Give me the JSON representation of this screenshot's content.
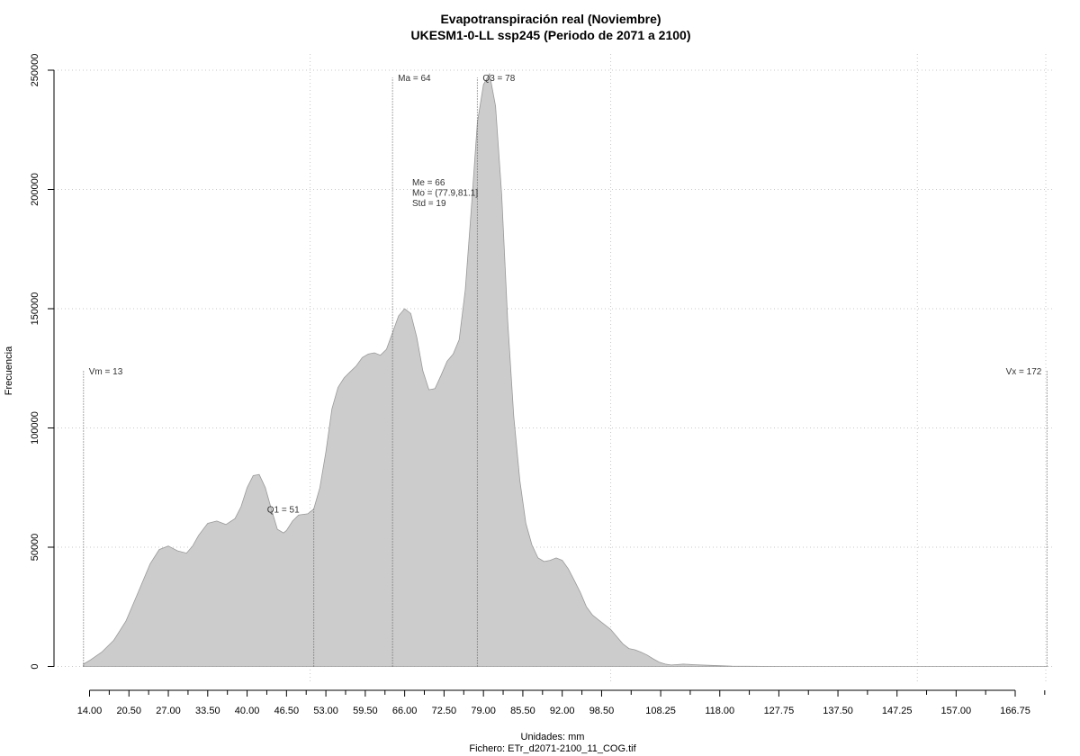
{
  "chart_data": {
    "type": "area",
    "title": "Evapotranspiración real (Noviembre)",
    "subtitle": "UKESM1-0-LL ssp245 (Periodo de 2071 a 2100)",
    "xlabel": "Unidades: mm",
    "caption": "Fichero: ETr_d2071-2100_11_COG.tif",
    "ylabel": "Frecuencia",
    "xlim": [
      12,
      175
    ],
    "ylim": [
      0,
      250000
    ],
    "y_ticks": [
      "0",
      "50000",
      "100000",
      "150000",
      "200000",
      "250000"
    ],
    "y_tick_values": [
      0,
      50000,
      100000,
      150000,
      200000,
      250000
    ],
    "x_ticks_major": [
      "14.00",
      "20.50",
      "27.00",
      "33.50",
      "40.00",
      "46.50",
      "53.00",
      "59.50",
      "66.00",
      "72.50",
      "79.00",
      "85.50",
      "92.00",
      "98.50",
      "108.25",
      "118.00",
      "127.75",
      "137.50",
      "147.25",
      "157.00",
      "166.75"
    ],
    "x_ticks_major_values": [
      14,
      20.5,
      27,
      33.5,
      40,
      46.5,
      53,
      59.5,
      66,
      72.5,
      79,
      85.5,
      92,
      98.5,
      108.25,
      118,
      127.75,
      137.5,
      147.25,
      157,
      166.75
    ],
    "x_ticks_minor": [
      17.25,
      23.75,
      30.25,
      36.75,
      43.25,
      49.75,
      56.25,
      62.75,
      69.25,
      75.75,
      82.25,
      88.75,
      95.25,
      103.375,
      113.125,
      122.875,
      132.625,
      142.375,
      152.125,
      161.875,
      171.625
    ],
    "grid": true,
    "vertical_grid_values": [
      50.4,
      100,
      150.6,
      171.8
    ],
    "x": [
      13,
      14,
      16,
      18,
      20,
      22,
      24,
      25.5,
      27,
      28.5,
      30,
      31,
      32,
      33.5,
      35,
      36.5,
      38,
      39,
      40,
      41,
      42,
      43,
      44,
      45,
      46,
      46.5,
      47.5,
      48.5,
      50,
      51,
      52,
      53,
      54,
      55,
      56,
      57,
      58,
      59,
      60,
      61,
      62,
      63,
      64,
      65,
      66,
      67,
      68,
      69,
      70,
      71,
      72,
      73,
      74,
      75,
      76,
      77,
      78,
      79,
      80,
      81,
      82,
      83,
      84,
      85,
      86,
      87,
      88,
      89,
      90,
      91,
      92,
      93,
      94,
      95,
      96,
      97,
      98,
      99,
      100,
      101,
      102,
      103,
      104,
      105,
      106,
      107,
      108,
      109,
      110,
      112,
      114,
      116,
      118,
      120,
      125,
      130,
      140,
      150,
      160,
      170,
      172
    ],
    "y": [
      1000,
      2500,
      6000,
      11000,
      19000,
      31000,
      43000,
      49000,
      50500,
      48500,
      47500,
      50500,
      55000,
      60000,
      61000,
      59500,
      62000,
      67000,
      75000,
      80000,
      80500,
      75000,
      66000,
      57500,
      56000,
      57000,
      61000,
      63500,
      64000,
      66000,
      75000,
      90000,
      108000,
      117000,
      121000,
      123500,
      126000,
      129500,
      131000,
      131500,
      130500,
      133000,
      140000,
      147000,
      150000,
      148000,
      138000,
      124000,
      116000,
      116500,
      122000,
      128000,
      131000,
      137000,
      158000,
      192000,
      228000,
      244000,
      248500,
      235000,
      198000,
      145000,
      105000,
      78000,
      60000,
      51000,
      45500,
      44000,
      44500,
      45500,
      44500,
      41000,
      36000,
      31000,
      25000,
      21500,
      19500,
      17500,
      15500,
      12500,
      9500,
      7500,
      7000,
      6000,
      4800,
      3200,
      1800,
      1000,
      600,
      1000,
      700,
      500,
      300,
      100,
      50,
      0,
      0,
      0,
      0,
      0,
      0
    ],
    "markers": [
      {
        "value": 13,
        "label": "Vm = 13",
        "height": 124000
      },
      {
        "value": 51,
        "label": "Q1 = 51",
        "height": 66000
      },
      {
        "value": 64,
        "label": "Ma = 64",
        "height": 247000
      },
      {
        "value": 78,
        "label": "Q3 = 78",
        "height": 247000
      },
      {
        "value": 172,
        "label": "Vx = 172",
        "height": 124000
      }
    ],
    "stats_text": [
      "Me = 66",
      "Mo = (77.9,81.1]",
      "Std = 19"
    ],
    "fill_color": "#cccccc",
    "line_color": "#999999"
  }
}
